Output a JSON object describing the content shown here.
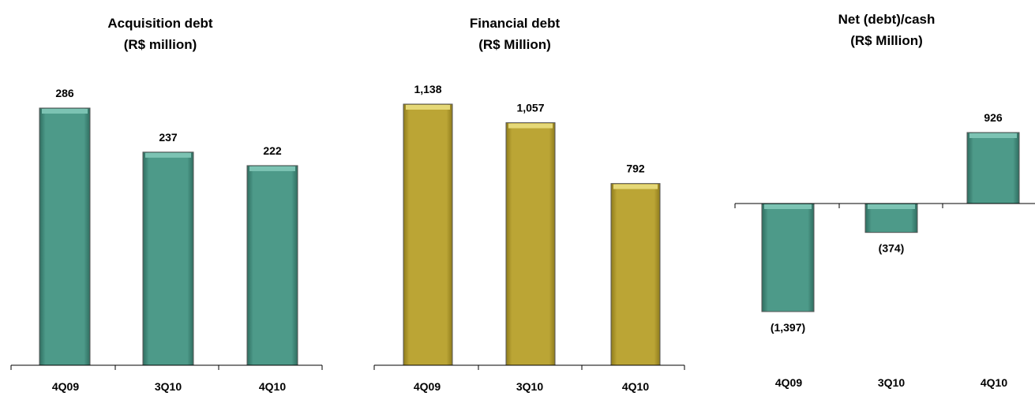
{
  "chart_data": [
    {
      "type": "bar",
      "title": "Acquisition debt",
      "subtitle": "(R$ million)",
      "categories": [
        "4Q09",
        "3Q10",
        "4Q10"
      ],
      "values": [
        286,
        237,
        222
      ],
      "value_labels": [
        "286",
        "237",
        "222"
      ],
      "color": "#4a9484",
      "ylim": [
        0,
        286
      ]
    },
    {
      "type": "bar",
      "title": "Financial debt",
      "subtitle": "(R$ Million)",
      "categories": [
        "4Q09",
        "3Q10",
        "4Q10"
      ],
      "values": [
        1138,
        1057,
        792
      ],
      "value_labels": [
        "1,138",
        "1,057",
        "792"
      ],
      "color": "#b8a232",
      "ylim": [
        0,
        1138
      ]
    },
    {
      "type": "bar",
      "title": "Net (debt)/cash",
      "subtitle": "(R$ Million)",
      "categories": [
        "4Q09",
        "3Q10",
        "4Q10"
      ],
      "values": [
        -1397,
        -374,
        926
      ],
      "value_labels": [
        "(1,397)",
        "(374)",
        "926"
      ],
      "color": "#4a9484",
      "ylim": [
        -1397,
        926
      ]
    }
  ]
}
